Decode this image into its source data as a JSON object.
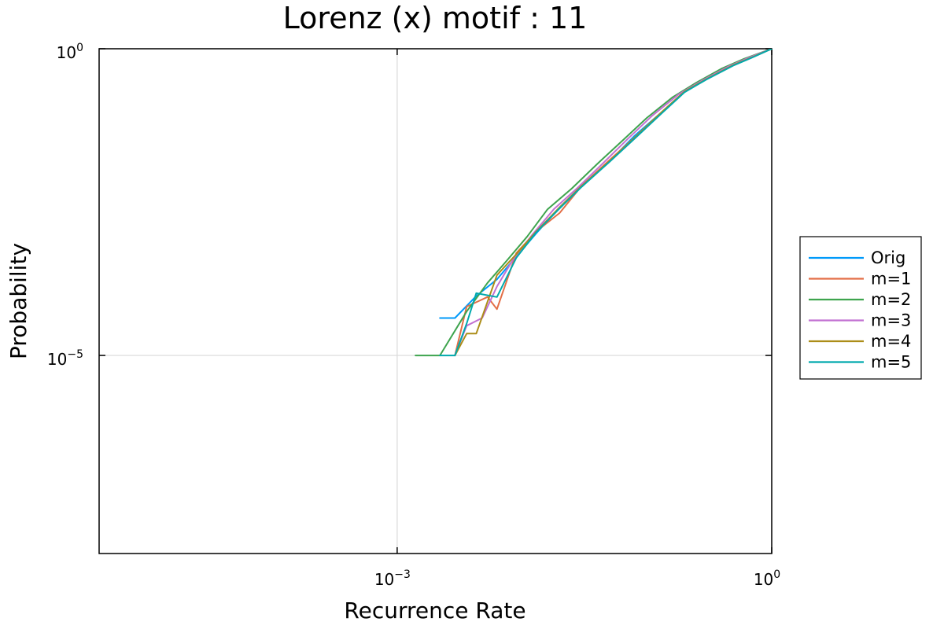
{
  "chart_data": {
    "type": "line",
    "title": "Lorenz (x) motif : 11",
    "xlabel": "Recurrence Rate",
    "ylabel": "Probability",
    "xscale": "log",
    "yscale": "log",
    "xlim": [
      4.1e-06,
      1
    ],
    "ylim": [
      5.9e-09,
      1
    ],
    "xticks": [
      {
        "value": 0.001,
        "base": "10",
        "exp": "−3"
      },
      {
        "value": 1,
        "base": "10",
        "exp": "0"
      }
    ],
    "yticks": [
      {
        "value": 1e-05,
        "base": "10",
        "exp": "−5"
      },
      {
        "value": 1,
        "base": "10",
        "exp": "0"
      }
    ],
    "grid": true,
    "legend_position": "outside-right",
    "series": [
      {
        "name": "Orig",
        "color": "#009AFA",
        "x": [
          0.0022,
          0.0029,
          0.0043,
          0.0063,
          0.009,
          0.013,
          0.02,
          0.03,
          0.05,
          0.08,
          0.13,
          0.2,
          0.3,
          0.5,
          0.7,
          1.0
        ],
        "y": [
          4.07e-05,
          4.07e-05,
          9.3e-05,
          0.000174,
          0.00041,
          0.00098,
          0.0026,
          0.0058,
          0.0145,
          0.0383,
          0.091,
          0.2,
          0.32,
          0.55,
          0.73,
          1.0
        ]
      },
      {
        "name": "m=1",
        "color": "#E36F47",
        "x": [
          0.0029,
          0.0036,
          0.0053,
          0.0063,
          0.009,
          0.013,
          0.02,
          0.03,
          0.05,
          0.08,
          0.13,
          0.2,
          0.3,
          0.5,
          0.7,
          1.0
        ],
        "y": [
          1e-05,
          6.25e-05,
          8.97e-05,
          5.68e-05,
          0.000466,
          0.00105,
          0.0021,
          0.0058,
          0.0152,
          0.0357,
          0.091,
          0.2,
          0.32,
          0.55,
          0.73,
          1.0
        ]
      },
      {
        "name": "m=2",
        "color": "#3EA44E",
        "x": [
          0.0014,
          0.0022,
          0.0036,
          0.0053,
          0.0075,
          0.011,
          0.016,
          0.025,
          0.04,
          0.065,
          0.1,
          0.16,
          0.25,
          0.4,
          0.6,
          1.0
        ],
        "y": [
          1e-05,
          1e-05,
          5.2e-05,
          0.000153,
          0.000346,
          0.00087,
          0.00241,
          0.00525,
          0.0132,
          0.033,
          0.0748,
          0.161,
          0.281,
          0.478,
          0.685,
          1.0
        ]
      },
      {
        "name": "m=3",
        "color": "#C271D2",
        "x": [
          0.0029,
          0.0036,
          0.0048,
          0.0063,
          0.0085,
          0.012,
          0.018,
          0.028,
          0.045,
          0.07,
          0.11,
          0.18,
          0.28,
          0.45,
          0.65,
          1.0
        ],
        "y": [
          1e-05,
          3.05e-05,
          4.09e-05,
          0.000133,
          0.00037,
          0.00091,
          0.00243,
          0.00545,
          0.0139,
          0.0337,
          0.0807,
          0.181,
          0.307,
          0.514,
          0.71,
          1.0
        ]
      },
      {
        "name": "m=4",
        "color": "#AC8D18",
        "x": [
          0.0029,
          0.0036,
          0.0043,
          0.0063,
          0.009,
          0.013,
          0.02,
          0.03,
          0.05,
          0.08,
          0.13,
          0.2,
          0.3,
          0.5,
          0.7,
          1.0
        ],
        "y": [
          1e-05,
          2.27e-05,
          2.27e-05,
          0.000204,
          0.000447,
          0.00105,
          0.0026,
          0.0058,
          0.0145,
          0.0357,
          0.091,
          0.2,
          0.32,
          0.55,
          0.73,
          1.0
        ]
      },
      {
        "name": "m=5",
        "color": "#00A9AD",
        "x": [
          0.0022,
          0.0029,
          0.0036,
          0.0043,
          0.0063,
          0.009,
          0.013,
          0.02,
          0.03,
          0.05,
          0.08,
          0.13,
          0.2,
          0.3,
          0.5,
          0.7,
          1.0
        ],
        "y": [
          1e-05,
          1e-05,
          3.31e-05,
          0.0001034,
          8.96e-05,
          0.00039,
          0.00102,
          0.0025,
          0.0056,
          0.0142,
          0.0345,
          0.0868,
          0.195,
          0.315,
          0.54,
          0.72,
          1.0
        ]
      }
    ]
  }
}
